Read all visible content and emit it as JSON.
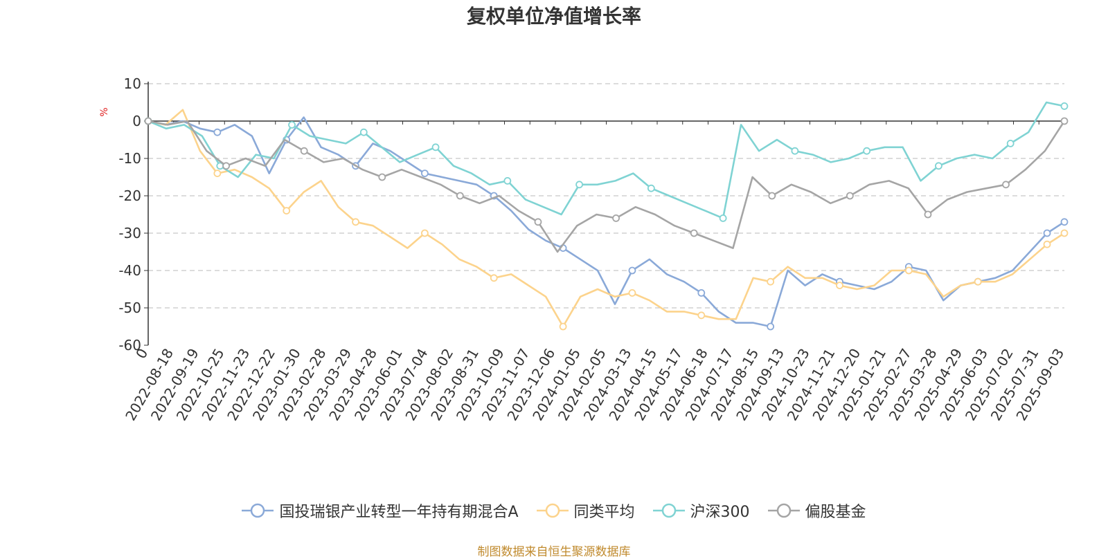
{
  "title": "复权单位净值增长率",
  "source_note": "制图数据来自恒生聚源数据库",
  "chart_data": {
    "type": "line",
    "title": "复权单位净值增长率",
    "ylabel": "%",
    "ylim": [
      -60,
      10
    ],
    "yticks": [
      10,
      0,
      -10,
      -20,
      -30,
      -40,
      -50,
      -60
    ],
    "grid": true,
    "legend_position": "bottom",
    "x_tick_labels": [
      "0",
      "2022-08-18",
      "2022-09-19",
      "2022-10-25",
      "2022-11-23",
      "2022-12-22",
      "2023-01-30",
      "2023-02-28",
      "2023-03-29",
      "2023-04-28",
      "2023-06-01",
      "2023-07-04",
      "2023-08-02",
      "2023-08-31",
      "2023-10-09",
      "2023-11-07",
      "2023-12-06",
      "2024-01-05",
      "2024-02-05",
      "2024-03-13",
      "2024-04-15",
      "2024-05-17",
      "2024-06-18",
      "2024-07-17",
      "2024-08-15",
      "2024-09-13",
      "2024-10-23",
      "2024-11-21",
      "2024-12-20",
      "2025-01-21",
      "2025-02-27",
      "2025-03-28",
      "2025-04-29",
      "2025-06-03",
      "2025-07-02",
      "2025-07-31",
      "2025-09-03"
    ],
    "series": [
      {
        "name": "国投瑞银产业转型一年持有期混合A",
        "color": "#8aa9d8",
        "values": [
          0,
          -1,
          0,
          -2,
          -3,
          -1,
          -4,
          -14,
          -5,
          1,
          -7,
          -9,
          -12,
          -6,
          -8,
          -11,
          -14,
          -15,
          -16,
          -17,
          -20,
          -24,
          -29,
          -32,
          -34,
          -37,
          -40,
          -49,
          -40,
          -37,
          -41,
          -43,
          -46,
          -51,
          -54,
          -54,
          -55,
          -40,
          -44,
          -41,
          -43,
          -44,
          -45,
          -43,
          -39,
          -40,
          -48,
          -44,
          -43,
          -42,
          -40,
          -35,
          -30,
          -27
        ]
      },
      {
        "name": "同类平均",
        "color": "#fcd38c",
        "values": [
          0,
          -1,
          3,
          -8,
          -14,
          -13,
          -15,
          -18,
          -24,
          -19,
          -16,
          -23,
          -27,
          -28,
          -31,
          -34,
          -30,
          -33,
          -37,
          -39,
          -42,
          -41,
          -44,
          -47,
          -55,
          -47,
          -45,
          -47,
          -46,
          -48,
          -51,
          -51,
          -52,
          -53,
          -53,
          -42,
          -43,
          -39,
          -42,
          -42,
          -44,
          -45,
          -44,
          -40,
          -40,
          -41,
          -47,
          -44,
          -43,
          -43,
          -41,
          -37,
          -33,
          -30
        ]
      },
      {
        "name": "沪深300",
        "color": "#7fd3d3",
        "values": [
          0,
          -2,
          -1,
          -4,
          -12,
          -15,
          -9,
          -10,
          -1,
          -4,
          -5,
          -6,
          -3,
          -7,
          -11,
          -9,
          -7,
          -12,
          -14,
          -17,
          -16,
          -21,
          -23,
          -25,
          -17,
          -17,
          -16,
          -14,
          -18,
          -20,
          -22,
          -24,
          -26,
          -1,
          -8,
          -5,
          -8,
          -9,
          -11,
          -10,
          -8,
          -7,
          -7,
          -16,
          -12,
          -10,
          -9,
          -10,
          -6,
          -3,
          5,
          4
        ]
      },
      {
        "name": "偏股基金",
        "color": "#a5a5a5",
        "values": [
          0,
          -1,
          0,
          -8,
          -12,
          -10,
          -12,
          -5,
          -8,
          -11,
          -10,
          -13,
          -15,
          -13,
          -15,
          -17,
          -20,
          -22,
          -20,
          -24,
          -27,
          -35,
          -28,
          -25,
          -26,
          -23,
          -25,
          -28,
          -30,
          -32,
          -34,
          -15,
          -20,
          -17,
          -19,
          -22,
          -20,
          -17,
          -16,
          -18,
          -25,
          -21,
          -19,
          -18,
          -17,
          -13,
          -8,
          0
        ]
      }
    ]
  }
}
